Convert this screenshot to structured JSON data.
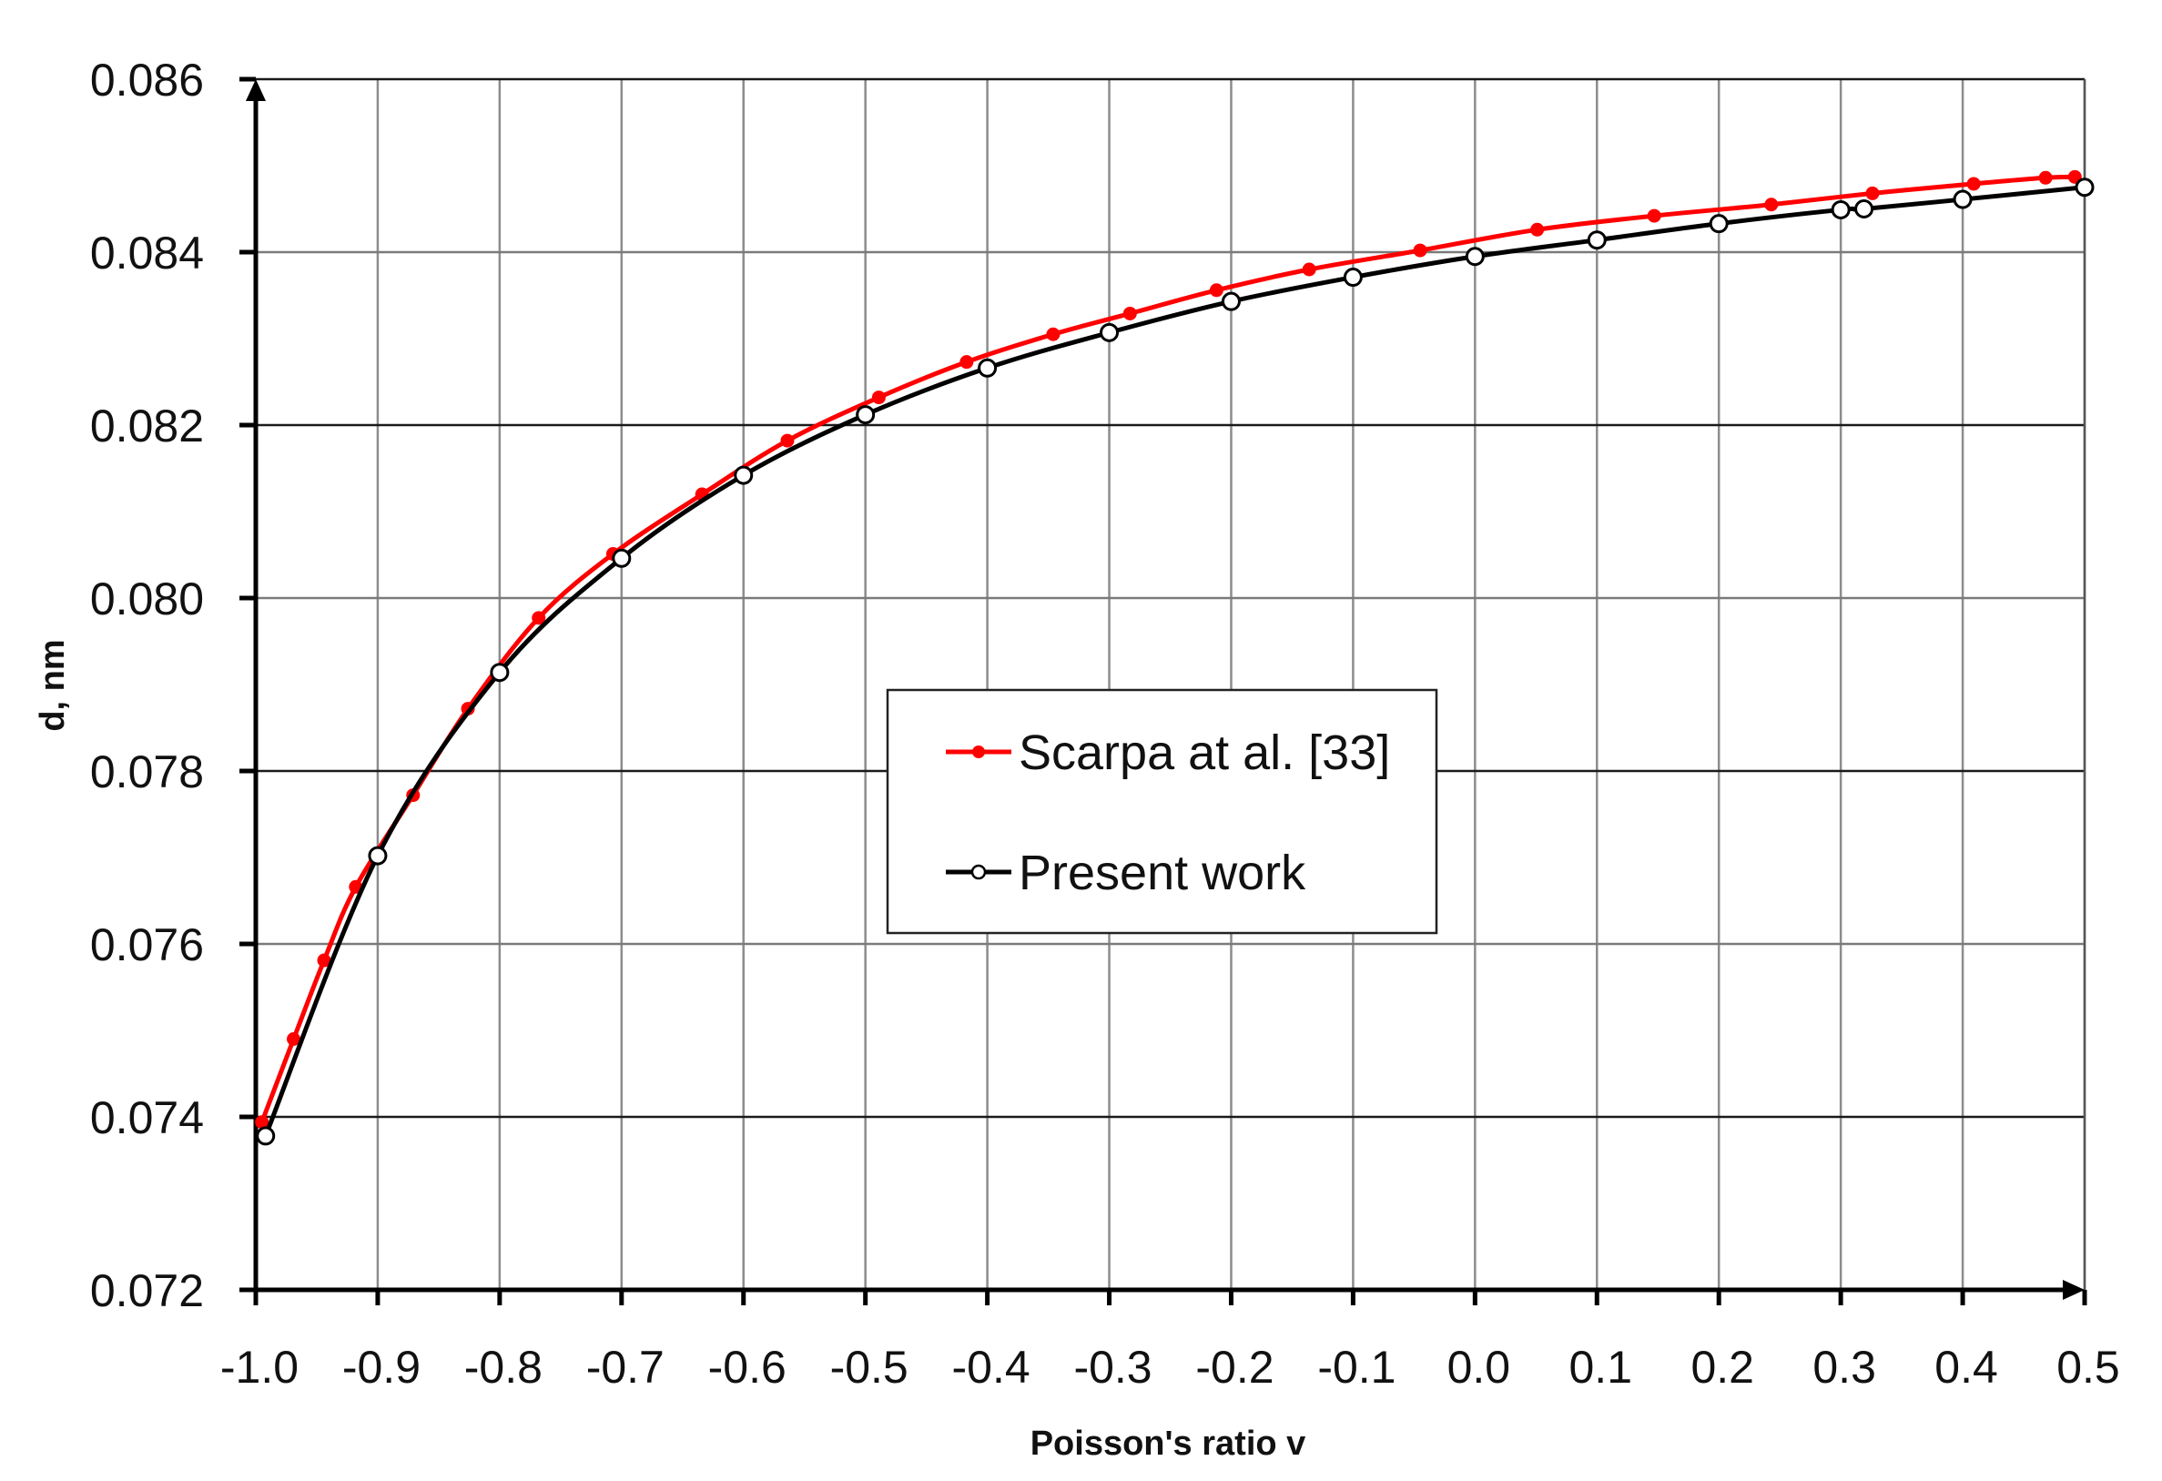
{
  "chart_data": {
    "type": "line",
    "title": "",
    "xlabel": "Poisson's ratio v",
    "ylabel": "d, nm",
    "xlim": [
      -1.0,
      0.5
    ],
    "ylim": [
      0.072,
      0.086
    ],
    "grid": true,
    "legend_position": "center",
    "x_ticks": [
      "-1.0",
      "-0.9",
      "-0.8",
      "-0.7",
      "-0.6",
      "-0.5",
      "-0.4",
      "-0.3",
      "-0.2",
      "-0.1",
      "0.0",
      "0.1",
      "0.2",
      "0.3",
      "0.4",
      "0.5"
    ],
    "y_ticks": [
      "0.072",
      "0.074",
      "0.076",
      "0.078",
      "0.080",
      "0.082",
      "0.084",
      "0.086"
    ],
    "series": [
      {
        "name": "Scarpa at al. [33]",
        "color": "#ff0000",
        "marker": "filled-circle",
        "x": [
          -0.995,
          -0.969,
          -0.944,
          -0.918,
          -0.871,
          -0.826,
          -0.768,
          -0.707,
          -0.634,
          -0.564,
          -0.489,
          -0.417,
          -0.346,
          -0.283,
          -0.212,
          -0.136,
          -0.045,
          0.051,
          0.147,
          0.243,
          0.326,
          0.409,
          0.468,
          0.492
        ],
        "y": [
          0.07394,
          0.0749,
          0.07581,
          0.07666,
          0.07772,
          0.07872,
          0.07977,
          0.08051,
          0.0812,
          0.08182,
          0.08232,
          0.08273,
          0.08305,
          0.08329,
          0.08356,
          0.0838,
          0.08402,
          0.08426,
          0.08442,
          0.08455,
          0.08468,
          0.08479,
          0.08486,
          0.08487
        ]
      },
      {
        "name": "Present work",
        "color": "#000000",
        "marker": "open-circle",
        "x": [
          -0.992,
          -0.9,
          -0.8,
          -0.7,
          -0.6,
          -0.5,
          -0.4,
          -0.3,
          -0.2,
          -0.1,
          0.0,
          0.1,
          0.2,
          0.3,
          0.319,
          0.4,
          0.5
        ],
        "y": [
          0.07378,
          0.07702,
          0.07914,
          0.08046,
          0.08142,
          0.08212,
          0.08266,
          0.08307,
          0.08343,
          0.08371,
          0.08395,
          0.08414,
          0.08433,
          0.08449,
          0.0845,
          0.08461,
          0.08475
        ]
      }
    ]
  },
  "legend": {
    "items": [
      {
        "label": "Scarpa at al. [33]"
      },
      {
        "label": "Present work"
      }
    ]
  },
  "axes": {
    "x_title": "Poisson's ratio v",
    "y_title": "d, nm"
  }
}
